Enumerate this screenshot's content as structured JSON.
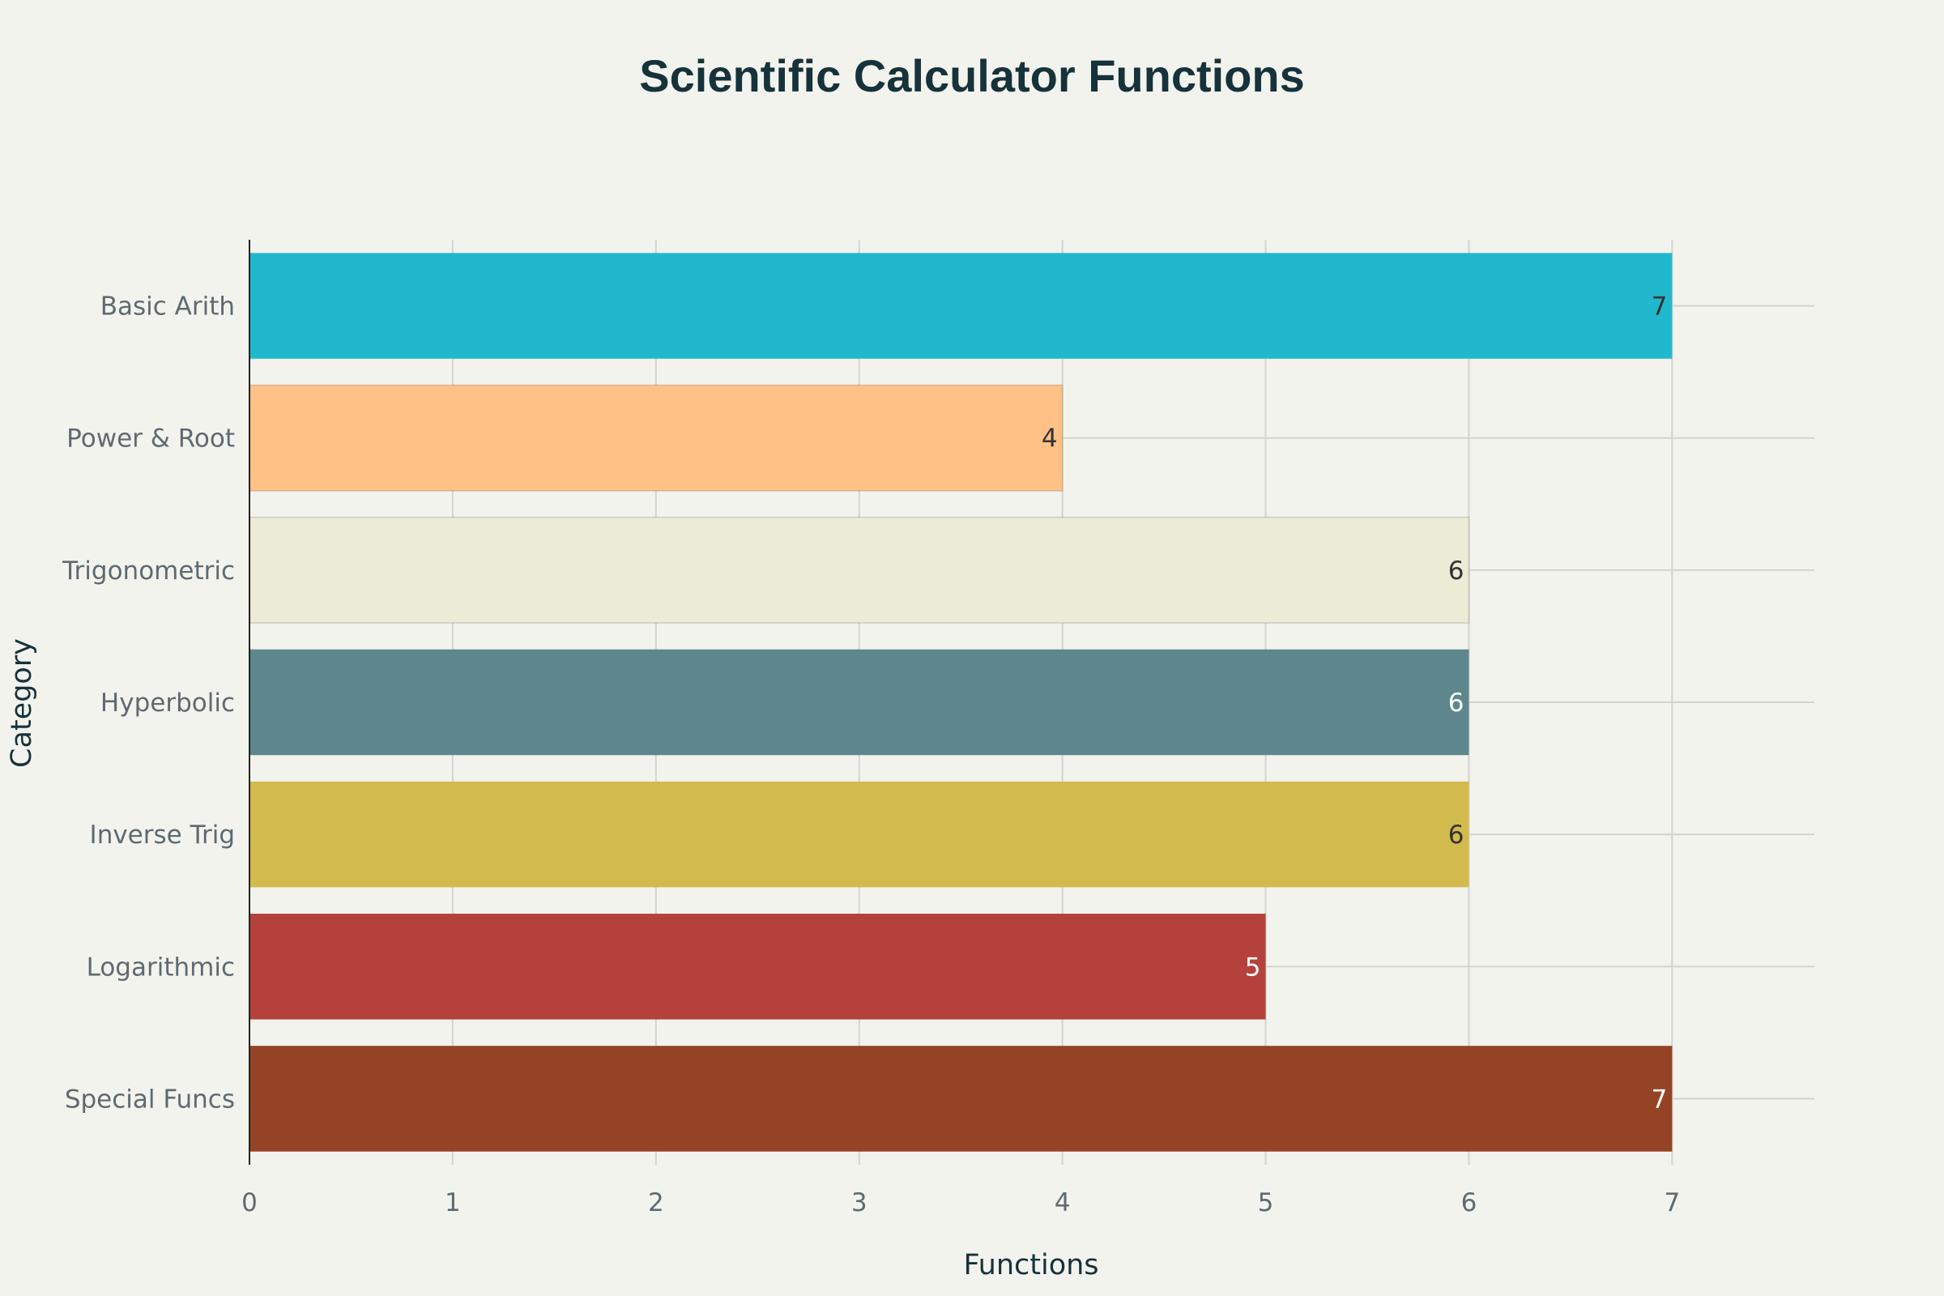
{
  "chart_data": {
    "type": "bar",
    "orientation": "horizontal",
    "title": "Scientific Calculator Functions",
    "xlabel": "Functions",
    "ylabel": "Category",
    "categories": [
      "Basic Arith",
      "Power & Root",
      "Trigonometric",
      "Hyperbolic",
      "Inverse Trig",
      "Logarithmic",
      "Special Funcs"
    ],
    "values": [
      7,
      4,
      6,
      6,
      6,
      5,
      7
    ],
    "colors": [
      "#21b8cd",
      "#ffc185",
      "#ecebd5",
      "#5d878c",
      "#d2ba4c",
      "#b4413c",
      "#944325"
    ],
    "label_colors": [
      "#333333",
      "#333333",
      "#333333",
      "#ffffff",
      "#333333",
      "#ffffff",
      "#ffffff"
    ],
    "xlim": [
      0,
      7.7
    ],
    "xticks": [
      0,
      1,
      2,
      3,
      4,
      5,
      6,
      7
    ],
    "grid": true,
    "legend": "none",
    "data_labels": "inside-end"
  }
}
